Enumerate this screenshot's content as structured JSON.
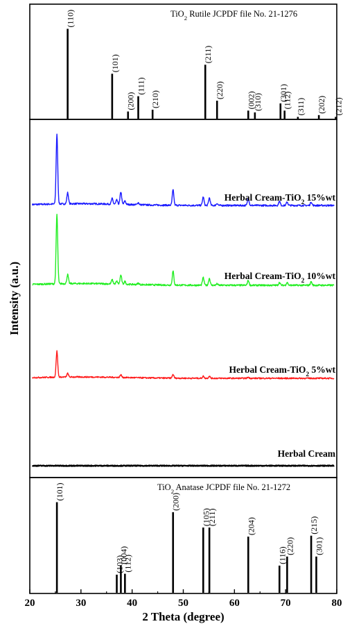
{
  "chart_data": [
    {
      "type": "bar",
      "panel": "rutile-reference",
      "label_prefix": "TiO",
      "label_sub": "2",
      "label_rest": " Rutile JCPDF file No. 21-1276",
      "x": [
        27.4,
        36.1,
        39.2,
        41.2,
        44.0,
        54.3,
        56.6,
        62.7,
        64.0,
        69.0,
        69.8,
        72.4,
        76.5,
        79.8
      ],
      "values": [
        100,
        50,
        8,
        25,
        10,
        60,
        20,
        9,
        7,
        17,
        9,
        2,
        4,
        2
      ],
      "peak_labels": [
        "(110)",
        "(101)",
        "(200)",
        "(111)",
        "(210)",
        "(211)",
        "(220)",
        "(002)",
        "(310)",
        "(301)",
        "(112)",
        "(311)",
        "(202)",
        "(212)"
      ],
      "ylim": [
        0,
        105
      ]
    },
    {
      "type": "line",
      "panel": "samples",
      "ylabel": "Intensity (a.u.)",
      "series": [
        {
          "name": "Herbal Cream-TiO2 15%wt",
          "name_parts": [
            "Herbal Cream-TiO",
            "2",
            " 15%wt"
          ],
          "color": "#1a1aff",
          "baseline": 12,
          "noise": 1.2,
          "peaks": [
            [
              25.3,
              100
            ],
            [
              27.4,
              16
            ],
            [
              36.1,
              8
            ],
            [
              37.0,
              6
            ],
            [
              37.8,
              18
            ],
            [
              38.6,
              5
            ],
            [
              41.2,
              3
            ],
            [
              48.0,
              22
            ],
            [
              53.9,
              12
            ],
            [
              55.1,
              11
            ],
            [
              56.6,
              3
            ],
            [
              62.7,
              11
            ],
            [
              68.8,
              6
            ],
            [
              70.3,
              5
            ],
            [
              75.0,
              5
            ]
          ]
        },
        {
          "name": "Herbal Cream-TiO2 10%wt",
          "name_parts": [
            "Herbal Cream-TiO",
            "2",
            " 10%wt"
          ],
          "color": "#22ee22",
          "baseline": 9,
          "noise": 1.2,
          "peaks": [
            [
              25.3,
              100
            ],
            [
              27.4,
              13
            ],
            [
              36.1,
              6
            ],
            [
              37.0,
              4
            ],
            [
              37.8,
              13
            ],
            [
              38.6,
              4
            ],
            [
              41.2,
              2
            ],
            [
              48.0,
              20
            ],
            [
              53.9,
              11
            ],
            [
              55.1,
              10
            ],
            [
              56.6,
              2
            ],
            [
              62.7,
              7
            ],
            [
              68.8,
              4
            ],
            [
              70.3,
              4
            ],
            [
              75.0,
              5
            ]
          ]
        },
        {
          "name": "Herbal Cream-TiO2 5%wt",
          "name_parts": [
            "Herbal Cream-TiO",
            "2",
            " 5%wt"
          ],
          "color": "#ff1a1a",
          "baseline": 7,
          "noise": 1.3,
          "peaks": [
            [
              25.3,
              50
            ],
            [
              27.4,
              7
            ],
            [
              37.8,
              5
            ],
            [
              48.0,
              7
            ],
            [
              53.9,
              4
            ],
            [
              55.1,
              4
            ],
            [
              62.7,
              2
            ]
          ]
        },
        {
          "name": "Herbal Cream",
          "name_parts": [
            "Herbal Cream",
            "",
            ""
          ],
          "color": "#000000",
          "baseline": 1.5,
          "noise": 0.6,
          "peaks": []
        }
      ],
      "xlim": [
        20,
        80
      ]
    },
    {
      "type": "bar",
      "panel": "anatase-reference",
      "label_prefix": "TiO",
      "label_sub": "2",
      "label_rest": " Anatase JCPDF file No. 21-1272",
      "x": [
        25.3,
        37.0,
        37.8,
        38.6,
        48.0,
        53.9,
        55.1,
        62.7,
        68.8,
        70.3,
        75.0,
        76.0
      ],
      "values": [
        100,
        20,
        30,
        21,
        89,
        72,
        72,
        62,
        30,
        40,
        63,
        40
      ],
      "peak_labels": [
        "(101)",
        "(103)",
        "(004)",
        "(112)",
        "(200)",
        "(105)",
        "(211)",
        "(204)",
        "(116)",
        "(220)",
        "(215)",
        "(301)"
      ],
      "ylim": [
        0,
        105
      ]
    },
    {
      "type": "axis",
      "xlabel": "2 Theta (degree)",
      "xticks": [
        "20",
        "30",
        "40",
        "50",
        "60",
        "70",
        "80"
      ],
      "xlim": [
        20,
        80
      ]
    }
  ]
}
